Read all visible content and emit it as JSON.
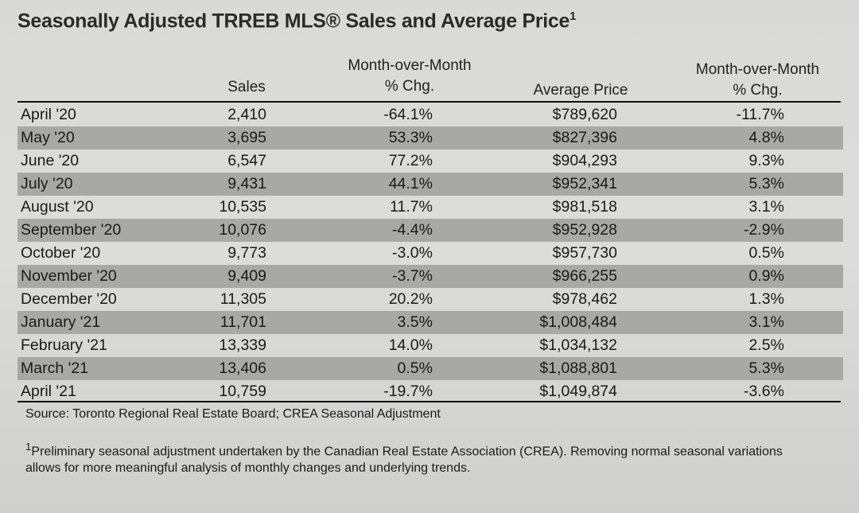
{
  "title": "Seasonally Adjusted TRREB MLS® Sales and Average Price",
  "title_footnote_mark": "1",
  "columns": {
    "sales": "Sales",
    "mom_sales_line1": "Month-over-Month",
    "mom_sales_line2": "% Chg.",
    "avg_price": "Average Price",
    "mom_price_line1": "Month-over-Month",
    "mom_price_line2": "% Chg."
  },
  "rows": [
    {
      "month": "April '20",
      "sales": "2,410",
      "sales_chg": "-64.1%",
      "price": "$789,620",
      "price_chg": "-11.7%"
    },
    {
      "month": "May '20",
      "sales": "3,695",
      "sales_chg": "53.3%",
      "price": "$827,396",
      "price_chg": "4.8%"
    },
    {
      "month": "June '20",
      "sales": "6,547",
      "sales_chg": "77.2%",
      "price": "$904,293",
      "price_chg": "9.3%"
    },
    {
      "month": "July '20",
      "sales": "9,431",
      "sales_chg": "44.1%",
      "price": "$952,341",
      "price_chg": "5.3%"
    },
    {
      "month": "August '20",
      "sales": "10,535",
      "sales_chg": "11.7%",
      "price": "$981,518",
      "price_chg": "3.1%"
    },
    {
      "month": "September '20",
      "sales": "10,076",
      "sales_chg": "-4.4%",
      "price": "$952,928",
      "price_chg": "-2.9%"
    },
    {
      "month": "October '20",
      "sales": "9,773",
      "sales_chg": "-3.0%",
      "price": "$957,730",
      "price_chg": "0.5%"
    },
    {
      "month": "November '20",
      "sales": "9,409",
      "sales_chg": "-3.7%",
      "price": "$966,255",
      "price_chg": "0.9%"
    },
    {
      "month": "December '20",
      "sales": "11,305",
      "sales_chg": "20.2%",
      "price": "$978,462",
      "price_chg": "1.3%"
    },
    {
      "month": "January '21",
      "sales": "11,701",
      "sales_chg": "3.5%",
      "price": "$1,008,484",
      "price_chg": "3.1%"
    },
    {
      "month": "February '21",
      "sales": "13,339",
      "sales_chg": "14.0%",
      "price": "$1,034,132",
      "price_chg": "2.5%"
    },
    {
      "month": "March '21",
      "sales": "13,406",
      "sales_chg": "0.5%",
      "price": "$1,088,801",
      "price_chg": "5.3%"
    },
    {
      "month": "April '21",
      "sales": "10,759",
      "sales_chg": "-19.7%",
      "price": "$1,049,874",
      "price_chg": "-3.6%"
    }
  ],
  "source": "Source: Toronto Regional Real Estate Board; CREA Seasonal Adjustment",
  "footnote_mark": "1",
  "footnote": "Preliminary seasonal adjustment undertaken by the Canadian Real Estate Association (CREA).  Removing normal seasonal variations allows for more meaningful analysis of monthly changes and underlying trends."
}
